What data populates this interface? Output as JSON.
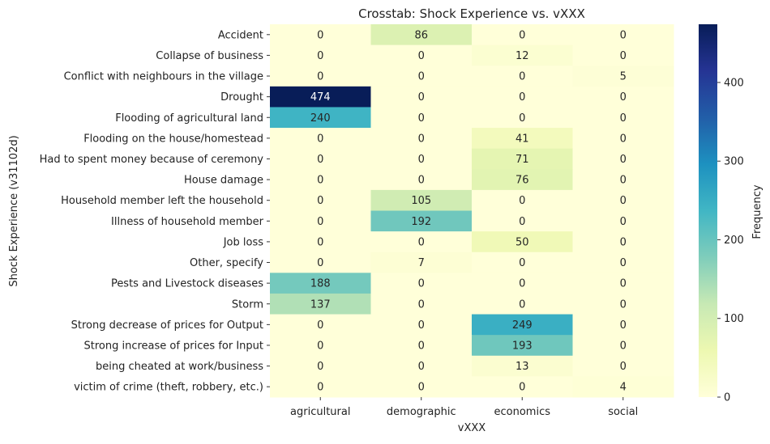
{
  "chart_data": {
    "type": "heatmap",
    "title": "Crosstab: Shock Experience vs. vXXX",
    "xlabel": "vXXX",
    "ylabel": "Shock Experience (v31102d)",
    "colorbar_label": "Frequency",
    "colorbar_ticks": [
      0,
      100,
      200,
      300,
      400
    ],
    "color_range": [
      0,
      474
    ],
    "colormap": "YlGnBu",
    "columns": [
      "agricultural",
      "demographic",
      "economics",
      "social"
    ],
    "rows": [
      "Accident",
      "Collapse of business",
      "Conflict with neighbours in the village",
      "Drought",
      "Flooding of agricultural land",
      "Flooding on the house/homestead",
      "Had to spent money because of ceremony",
      "House damage",
      "Household member left the household",
      "Illness of household member",
      "Job loss",
      "Other, specify",
      "Pests and Livestock diseases",
      "Storm",
      "Strong decrease of prices for Output",
      "Strong increase of prices for Input",
      "being cheated at work/business",
      "victim of crime (theft, robbery, etc.)"
    ],
    "values": [
      [
        0,
        86,
        0,
        0
      ],
      [
        0,
        0,
        12,
        0
      ],
      [
        0,
        0,
        0,
        5
      ],
      [
        474,
        0,
        0,
        0
      ],
      [
        240,
        0,
        0,
        0
      ],
      [
        0,
        0,
        41,
        0
      ],
      [
        0,
        0,
        71,
        0
      ],
      [
        0,
        0,
        76,
        0
      ],
      [
        0,
        105,
        0,
        0
      ],
      [
        0,
        192,
        0,
        0
      ],
      [
        0,
        0,
        50,
        0
      ],
      [
        0,
        7,
        0,
        0
      ],
      [
        188,
        0,
        0,
        0
      ],
      [
        137,
        0,
        0,
        0
      ],
      [
        0,
        0,
        249,
        0
      ],
      [
        0,
        0,
        193,
        0
      ],
      [
        0,
        0,
        13,
        0
      ],
      [
        0,
        0,
        0,
        4
      ]
    ]
  }
}
